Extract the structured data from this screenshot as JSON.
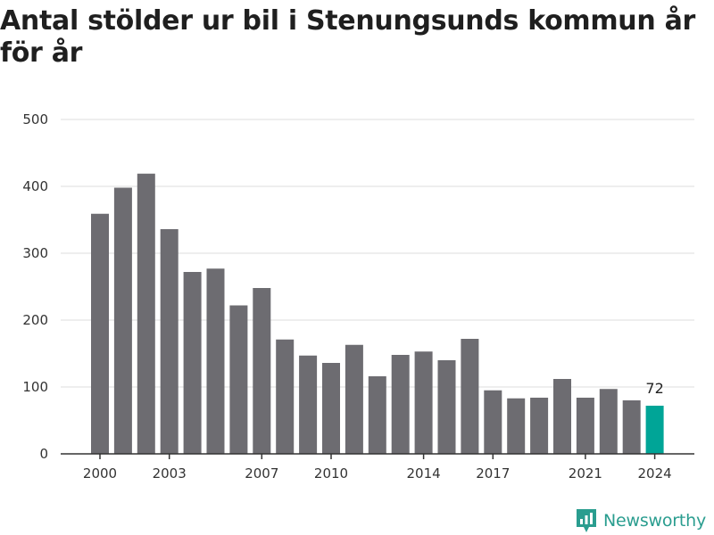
{
  "title": "Antal stölder ur bil i Stenungsunds kommun år för år",
  "brand": {
    "name": "Newsworthy",
    "icon": "bar-chart-icon",
    "color": "#2a9d8f"
  },
  "colors": {
    "bar": "#6d6c71",
    "highlight": "#00a597",
    "grid": "#dddddd",
    "axis": "#333333",
    "text": "#333333"
  },
  "chart_data": {
    "type": "bar",
    "categories": [
      "2000",
      "2001",
      "2002",
      "2003",
      "2004",
      "2005",
      "2006",
      "2007",
      "2008",
      "2009",
      "2010",
      "2011",
      "2012",
      "2013",
      "2014",
      "2015",
      "2016",
      "2017",
      "2018",
      "2019",
      "2020",
      "2021",
      "2022",
      "2023",
      "2024"
    ],
    "values": [
      359,
      398,
      419,
      336,
      272,
      277,
      222,
      248,
      171,
      147,
      136,
      163,
      116,
      148,
      153,
      140,
      172,
      95,
      83,
      84,
      112,
      84,
      97,
      80,
      72
    ],
    "x_tick_labels": [
      "2000",
      "2003",
      "2007",
      "2010",
      "2014",
      "2017",
      "2021",
      "2024"
    ],
    "y_ticks": [
      0,
      100,
      200,
      300,
      400,
      500
    ],
    "ylim": [
      0,
      500
    ],
    "grid": true,
    "highlight_category": "2024",
    "data_labels": [
      {
        "category": "2024",
        "text": "72"
      }
    ],
    "title": "Antal stölder ur bil i Stenungsunds kommun år för år",
    "xlabel": "",
    "ylabel": ""
  }
}
